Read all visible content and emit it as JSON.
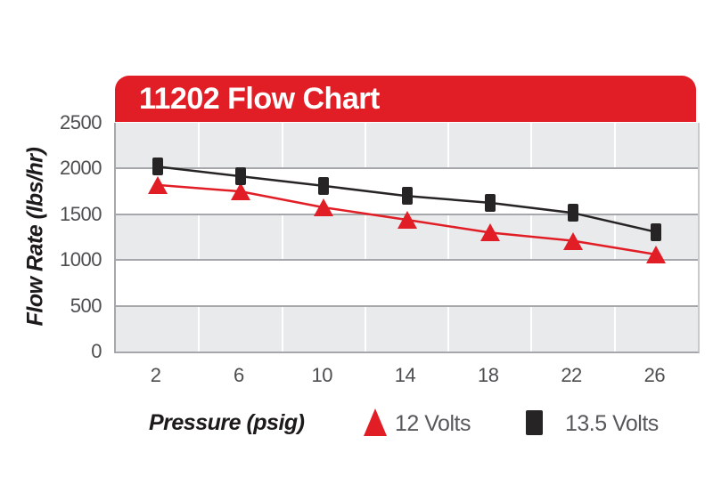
{
  "banner": {
    "title": "11202 Flow Chart",
    "bg_color": "#e11e26",
    "text_color": "#ffffff"
  },
  "colors": {
    "band_gray": "#e9eaec",
    "gridline_gray": "#a5a7aa",
    "tick_text": "#4d4e50",
    "legend_text": "#57585b",
    "red_series": "#e11e26",
    "black_series": "#272425"
  },
  "chart_data": {
    "type": "line",
    "title": "11202 Flow Chart",
    "xlabel": "Pressure (psig)",
    "ylabel": "Flow Rate (lbs/hr)",
    "categories": [
      2,
      6,
      10,
      14,
      18,
      22,
      26
    ],
    "x_tick_labels": [
      "2",
      "6",
      "10",
      "14",
      "18",
      "22",
      "26"
    ],
    "y_ticks": [
      0,
      500,
      1000,
      1500,
      2000,
      2500
    ],
    "ylim": [
      0,
      2500
    ],
    "grid": "horizontal gridlines every 500 with alternating gray/white bands; white vertical separators between categories",
    "legend_position": "bottom",
    "series": [
      {
        "name": "12 Volts",
        "color": "#e11e26",
        "marker": "triangle",
        "values": [
          1820,
          1750,
          1575,
          1440,
          1300,
          1210,
          1060
        ]
      },
      {
        "name": "13.5 Volts",
        "color": "#272425",
        "marker": "square",
        "values": [
          2020,
          1915,
          1810,
          1700,
          1625,
          1515,
          1305
        ]
      }
    ]
  }
}
